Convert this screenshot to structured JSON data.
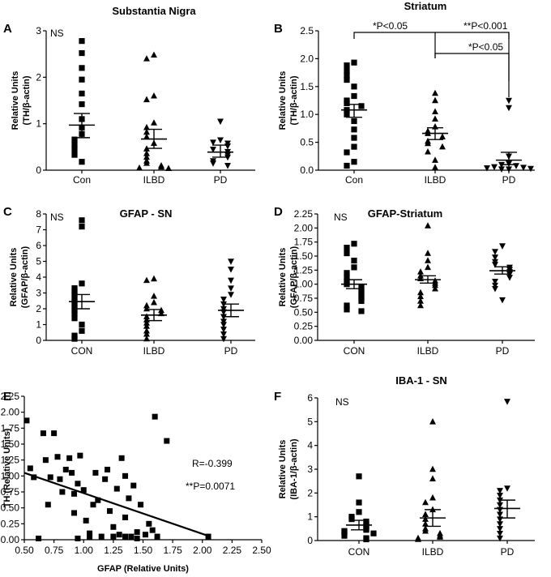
{
  "panels": [
    {
      "id": "A",
      "title": "Substantia Nigra",
      "ylabel": [
        "Relative Units",
        "(TH/β-actin)"
      ],
      "ylim": [
        0,
        3
      ],
      "yticks": [
        "0",
        "1",
        "2",
        "3"
      ],
      "categories": [
        "Con",
        "ILBD",
        "PD"
      ],
      "note": "NS",
      "groups": [
        {
          "marker": "square",
          "mean": 0.97,
          "sem_low": 0.7,
          "sem_high": 1.22,
          "points": [
            2.78,
            2.52,
            2.2,
            1.95,
            1.65,
            1.42,
            1.1,
            0.92,
            0.78,
            0.66,
            0.55,
            0.45,
            0.33,
            0.18
          ]
        },
        {
          "marker": "triangle",
          "mean": 0.67,
          "sem_low": 0.47,
          "sem_high": 0.88,
          "points": [
            2.48,
            2.4,
            1.6,
            1.52,
            1.02,
            0.92,
            0.82,
            0.72,
            0.58,
            0.46,
            0.36,
            0.28,
            0.2,
            0.15,
            0.1,
            0.07,
            0.05,
            0.04
          ]
        },
        {
          "marker": "triangle-down",
          "mean": 0.39,
          "sem_low": 0.28,
          "sem_high": 0.54,
          "points": [
            1.05,
            0.65,
            0.6,
            0.58,
            0.52,
            0.45,
            0.4,
            0.33,
            0.28,
            0.2,
            0.15,
            0.1
          ]
        }
      ]
    },
    {
      "id": "B",
      "title": "Striatum",
      "ylabel": [
        "Relative Units",
        "(TH/β-actin)"
      ],
      "ylim": [
        0,
        2.5
      ],
      "yticks": [
        "0.0",
        "0.5",
        "1.0",
        "1.5",
        "2.0",
        "2.5"
      ],
      "categories": [
        "Con",
        "ILBD",
        "PD"
      ],
      "note": "",
      "significance": [
        "*P<0.05",
        "**P<0.001",
        "*P<0.05"
      ],
      "groups": [
        {
          "marker": "square",
          "mean": 1.08,
          "sem_low": 0.95,
          "sem_high": 1.18,
          "points": [
            1.93,
            1.88,
            1.78,
            1.7,
            1.62,
            1.5,
            1.33,
            1.25,
            1.2,
            1.15,
            1.08,
            1.0,
            0.88,
            0.73,
            0.58,
            0.42,
            0.32,
            0.15,
            0.08
          ]
        },
        {
          "marker": "triangle",
          "mean": 0.66,
          "sem_low": 0.55,
          "sem_high": 0.76,
          "points": [
            1.38,
            1.25,
            1.05,
            0.92,
            0.78,
            0.7,
            0.66,
            0.6,
            0.52,
            0.48,
            0.42,
            0.33,
            0.18,
            0.05
          ]
        },
        {
          "marker": "triangle-down",
          "mean": 0.18,
          "sem_low": 0.1,
          "sem_high": 0.32,
          "points": [
            1.25,
            1.12,
            0.25,
            0.12,
            0.1,
            0.08,
            0.06,
            0.05,
            0.04,
            0.03,
            0.02,
            0.02
          ]
        }
      ]
    },
    {
      "id": "C",
      "title": "GFAP - SN",
      "ylabel": [
        "Relative Units",
        "(GFAP/β-actin)"
      ],
      "ylim": [
        0,
        8
      ],
      "yticks": [
        "0",
        "1",
        "2",
        "3",
        "4",
        "5",
        "6",
        "7",
        "8"
      ],
      "categories": [
        "CON",
        "ILBD",
        "PD"
      ],
      "note": "NS",
      "groups": [
        {
          "marker": "square",
          "mean": 2.45,
          "sem_low": 2.0,
          "sem_high": 2.9,
          "points": [
            7.6,
            7.2,
            3.6,
            3.3,
            3.1,
            2.9,
            2.7,
            2.5,
            2.3,
            2.1,
            1.9,
            1.7,
            1.4,
            1.0,
            0.6,
            0.3,
            0.1
          ]
        },
        {
          "marker": "triangle",
          "mean": 1.6,
          "sem_low": 1.25,
          "sem_high": 1.95,
          "points": [
            3.9,
            3.8,
            2.8,
            2.4,
            2.2,
            2.0,
            1.9,
            1.7,
            1.5,
            1.3,
            1.1,
            0.9,
            0.6,
            0.4,
            0.1
          ]
        },
        {
          "marker": "triangle-down",
          "mean": 1.9,
          "sem_low": 1.5,
          "sem_high": 2.3,
          "points": [
            5.0,
            4.5,
            3.8,
            3.3,
            2.9,
            2.6,
            2.3,
            2.0,
            1.8,
            1.5,
            1.2,
            1.0,
            0.7,
            0.4,
            0.1
          ]
        }
      ]
    },
    {
      "id": "D",
      "title": "GFAP-Striatum",
      "ylabel": [
        "Relative Units",
        "(GFAP/β-actin)"
      ],
      "ylim": [
        0,
        2.25
      ],
      "yticks": [
        "0.00",
        "0.25",
        "0.50",
        "0.75",
        "1.00",
        "1.25",
        "1.50",
        "1.75",
        "2.00",
        "2.25"
      ],
      "categories": [
        "CON",
        "ILBD",
        "PD"
      ],
      "note": "NS",
      "groups": [
        {
          "marker": "square",
          "mean": 1.0,
          "sem_low": 0.92,
          "sem_high": 1.08,
          "points": [
            1.72,
            1.65,
            1.55,
            1.42,
            1.3,
            1.2,
            1.12,
            1.05,
            1.0,
            0.95,
            0.9,
            0.85,
            0.8,
            0.75,
            0.7,
            0.62,
            0.55,
            0.52
          ]
        },
        {
          "marker": "triangle",
          "mean": 1.08,
          "sem_low": 1.02,
          "sem_high": 1.15,
          "points": [
            2.04,
            1.55,
            1.42,
            1.3,
            1.22,
            1.15,
            1.1,
            1.06,
            1.02,
            0.98,
            0.92,
            0.85,
            0.78,
            0.7,
            0.62
          ]
        },
        {
          "marker": "triangle-down",
          "mean": 1.24,
          "sem_low": 1.18,
          "sem_high": 1.31,
          "points": [
            1.68,
            1.58,
            1.48,
            1.4,
            1.35,
            1.3,
            1.26,
            1.22,
            1.18,
            1.12,
            1.05,
            0.98,
            0.92,
            0.72
          ]
        }
      ]
    },
    {
      "id": "F",
      "title": "IBA-1 - SN",
      "ylabel": [
        "Relative Units",
        "(IBA-1/β-actin)"
      ],
      "ylim": [
        0,
        6
      ],
      "yticks": [
        "0",
        "1",
        "2",
        "3",
        "4",
        "5",
        "6"
      ],
      "categories": [
        "CON",
        "ILBD",
        "PD"
      ],
      "note": "NS",
      "groups": [
        {
          "marker": "square",
          "mean": 0.65,
          "sem_low": 0.45,
          "sem_high": 0.85,
          "points": [
            2.7,
            1.6,
            1.2,
            1.0,
            0.9,
            0.8,
            0.7,
            0.6,
            0.5,
            0.45,
            0.4,
            0.35,
            0.3,
            0.2,
            0.1,
            0.05
          ]
        },
        {
          "marker": "triangle",
          "mean": 0.95,
          "sem_low": 0.6,
          "sem_high": 1.3,
          "points": [
            5.0,
            3.0,
            2.6,
            1.8,
            1.6,
            1.3,
            1.1,
            0.9,
            0.7,
            0.5,
            0.4,
            0.3,
            0.2,
            0.15,
            0.1,
            0.05
          ]
        },
        {
          "marker": "triangle-down",
          "mean": 1.35,
          "sem_low": 0.95,
          "sem_high": 1.7,
          "points": [
            5.85,
            2.2,
            2.1,
            1.9,
            1.7,
            1.5,
            1.3,
            1.1,
            0.9,
            0.7,
            0.5,
            0.3,
            0.1
          ]
        }
      ]
    }
  ],
  "scatter": {
    "id": "E",
    "xlabel": "GFAP (Relative Units)",
    "ylabel": "TH (Relative Units)",
    "xlim": [
      0.5,
      2.5
    ],
    "ylim": [
      0,
      2.25
    ],
    "xticks": [
      "0.50",
      "0.75",
      "1.00",
      "1.25",
      "1.50",
      "1.75",
      "2.00",
      "2.25",
      "2.50"
    ],
    "yticks": [
      "0.00",
      "0.25",
      "0.50",
      "0.75",
      "1.00",
      "1.25",
      "1.50",
      "1.75",
      "2.00",
      "2.25"
    ],
    "r_text": "R=-0.399",
    "p_text": "**P=0.0071",
    "fit": {
      "x1": 0.5,
      "y1": 1.05,
      "x2": 2.05,
      "y2": 0.06
    },
    "points": [
      [
        0.52,
        1.87
      ],
      [
        0.55,
        1.12
      ],
      [
        0.58,
        0.98
      ],
      [
        0.66,
        1.67
      ],
      [
        0.68,
        1.25
      ],
      [
        0.72,
        0.98
      ],
      [
        0.75,
        1.67
      ],
      [
        0.78,
        1.3
      ],
      [
        0.8,
        0.95
      ],
      [
        0.82,
        0.75
      ],
      [
        0.85,
        1.1
      ],
      [
        0.88,
        1.28
      ],
      [
        0.9,
        1.05
      ],
      [
        0.92,
        0.72
      ],
      [
        0.92,
        0.42
      ],
      [
        0.95,
        0.88
      ],
      [
        0.97,
        1.32
      ],
      [
        1.0,
        0.78
      ],
      [
        1.02,
        0.3
      ],
      [
        1.05,
        0.1
      ],
      [
        1.08,
        0.55
      ],
      [
        1.1,
        1.05
      ],
      [
        1.12,
        0.62
      ],
      [
        1.15,
        0.05
      ],
      [
        1.18,
        0.95
      ],
      [
        1.2,
        1.1
      ],
      [
        1.22,
        0.45
      ],
      [
        1.25,
        0.2
      ],
      [
        1.28,
        0.8
      ],
      [
        1.3,
        0.08
      ],
      [
        1.32,
        1.28
      ],
      [
        1.35,
        1.0
      ],
      [
        1.35,
        0.35
      ],
      [
        1.38,
        0.65
      ],
      [
        1.4,
        0.05
      ],
      [
        1.42,
        0.85
      ],
      [
        1.45,
        0.12
      ],
      [
        1.48,
        0.55
      ],
      [
        1.52,
        0.08
      ],
      [
        1.55,
        0.25
      ],
      [
        1.58,
        0.15
      ],
      [
        1.6,
        1.93
      ],
      [
        1.62,
        0.05
      ],
      [
        1.7,
        1.55
      ],
      [
        1.35,
        0.05
      ],
      [
        1.05,
        0.05
      ],
      [
        1.25,
        0.05
      ],
      [
        2.05,
        0.05
      ],
      [
        0.7,
        0.55
      ],
      [
        0.62,
        0.02
      ],
      [
        0.95,
        0.02
      ],
      [
        1.45,
        0.02
      ]
    ]
  }
}
